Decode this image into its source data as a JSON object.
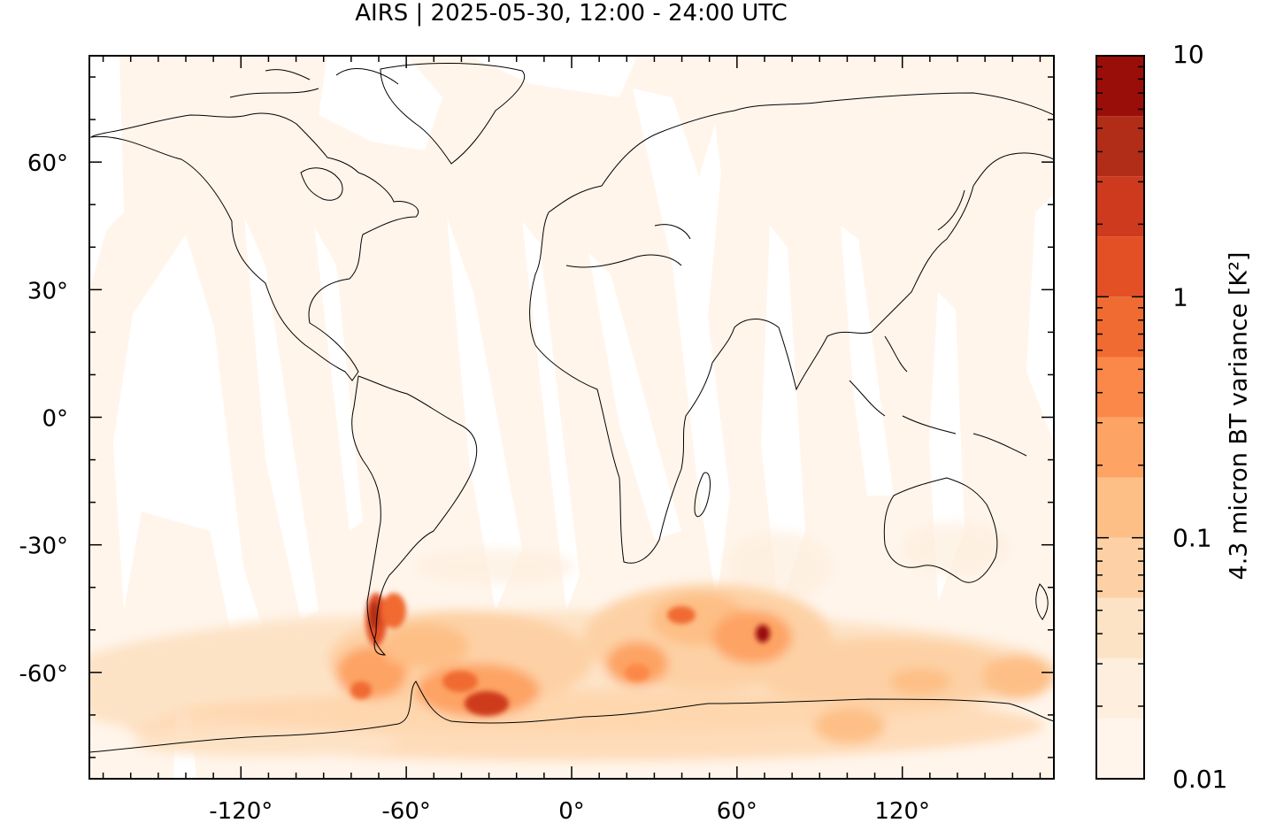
{
  "title": "AIRS | 2025-05-30, 12:00 - 24:00 UTC",
  "axes": {
    "x_ticks": [
      {
        "value": -120,
        "label": "-120°"
      },
      {
        "value": -60,
        "label": "-60°"
      },
      {
        "value": 0,
        "label": "0°"
      },
      {
        "value": 60,
        "label": "60°"
      },
      {
        "value": 120,
        "label": "120°"
      }
    ],
    "y_ticks": [
      {
        "value": 60,
        "label": "60°"
      },
      {
        "value": 30,
        "label": "30°"
      },
      {
        "value": 0,
        "label": "0°"
      },
      {
        "value": -30,
        "label": "-30°"
      },
      {
        "value": -60,
        "label": "-60°"
      }
    ],
    "lon_range": [
      -175,
      175
    ],
    "lat_range": [
      -85,
      85
    ]
  },
  "colorbar": {
    "label": "4.3 micron BT variance [K²]",
    "scale": "log",
    "range": [
      0.01,
      10
    ],
    "ticks": [
      {
        "value": 10,
        "label": "10"
      },
      {
        "value": 1,
        "label": "1"
      },
      {
        "value": 0.1,
        "label": "0.1"
      },
      {
        "value": 0.01,
        "label": "0.01"
      }
    ],
    "levels": [
      0.01,
      0.0178,
      0.0316,
      0.0562,
      0.1,
      0.178,
      0.316,
      0.562,
      1,
      1.78,
      3.16,
      5.62,
      10
    ],
    "colors": [
      "#fff5eb",
      "#feeede",
      "#fde3c6",
      "#fdd1a5",
      "#fdbf86",
      "#fda364",
      "#fb8848",
      "#f06b32",
      "#e35026",
      "#ce3a1e",
      "#b12d17",
      "#9a0e09"
    ]
  }
}
